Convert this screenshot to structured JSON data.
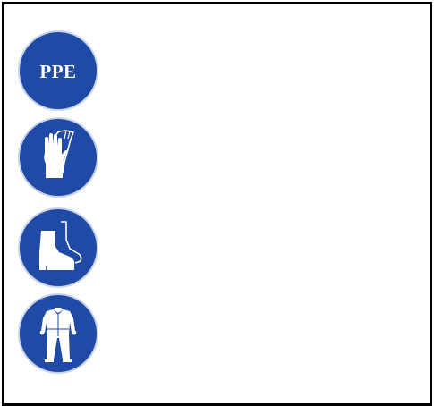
{
  "signs": {
    "ppe": {
      "label": "PPE",
      "icon": "ppe-text-icon"
    },
    "gloves": {
      "icon": "gloves-icon"
    },
    "boots": {
      "icon": "safety-boot-icon"
    },
    "coverall": {
      "icon": "coverall-icon"
    }
  },
  "colors": {
    "sign_blue": "#1f4aa6",
    "symbol_white": "#ffffff",
    "frame_black": "#000000"
  }
}
